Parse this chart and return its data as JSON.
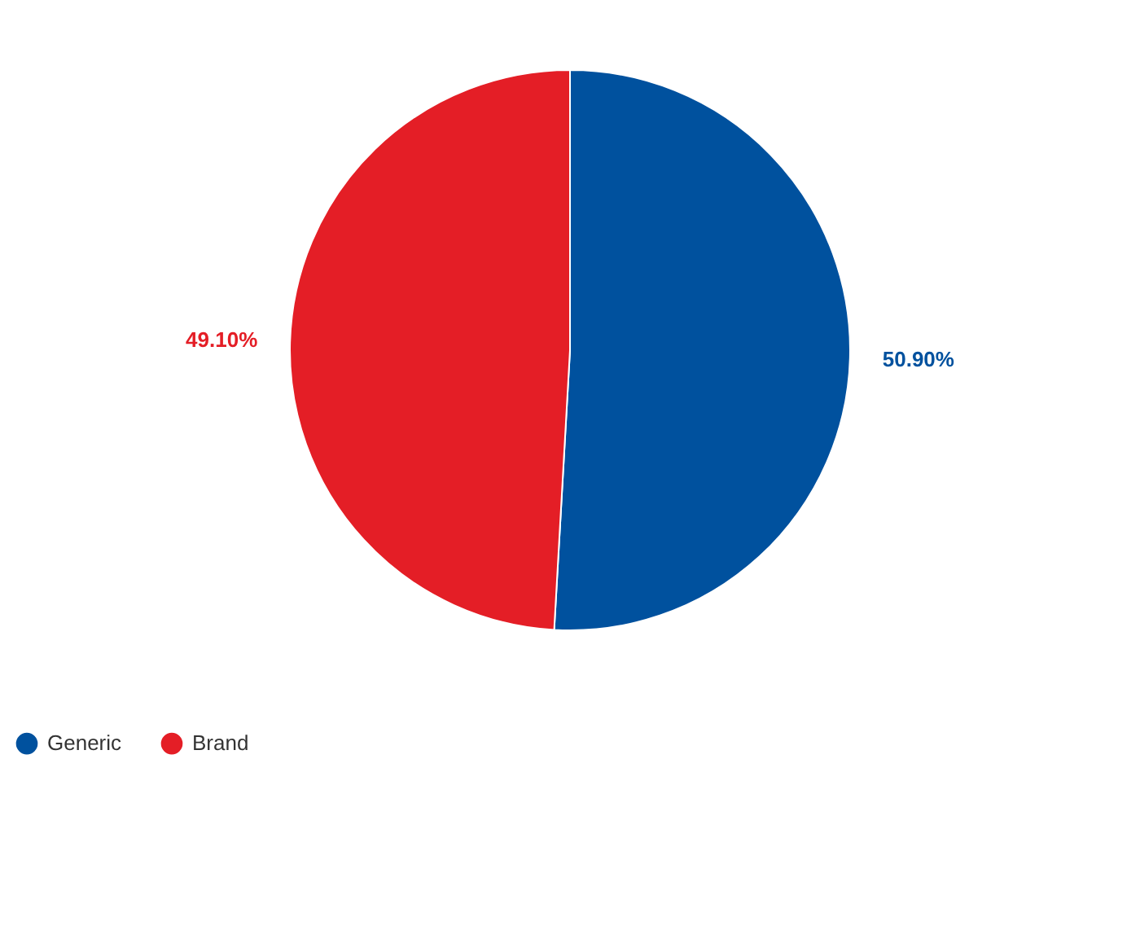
{
  "chart_data": {
    "type": "pie",
    "categories": [
      "Generic",
      "Brand"
    ],
    "values": [
      50.9,
      49.1
    ],
    "colors": [
      "#00519e",
      "#e41e26"
    ],
    "value_labels": [
      "50.90%",
      "49.10%"
    ],
    "legend": "bottom"
  }
}
